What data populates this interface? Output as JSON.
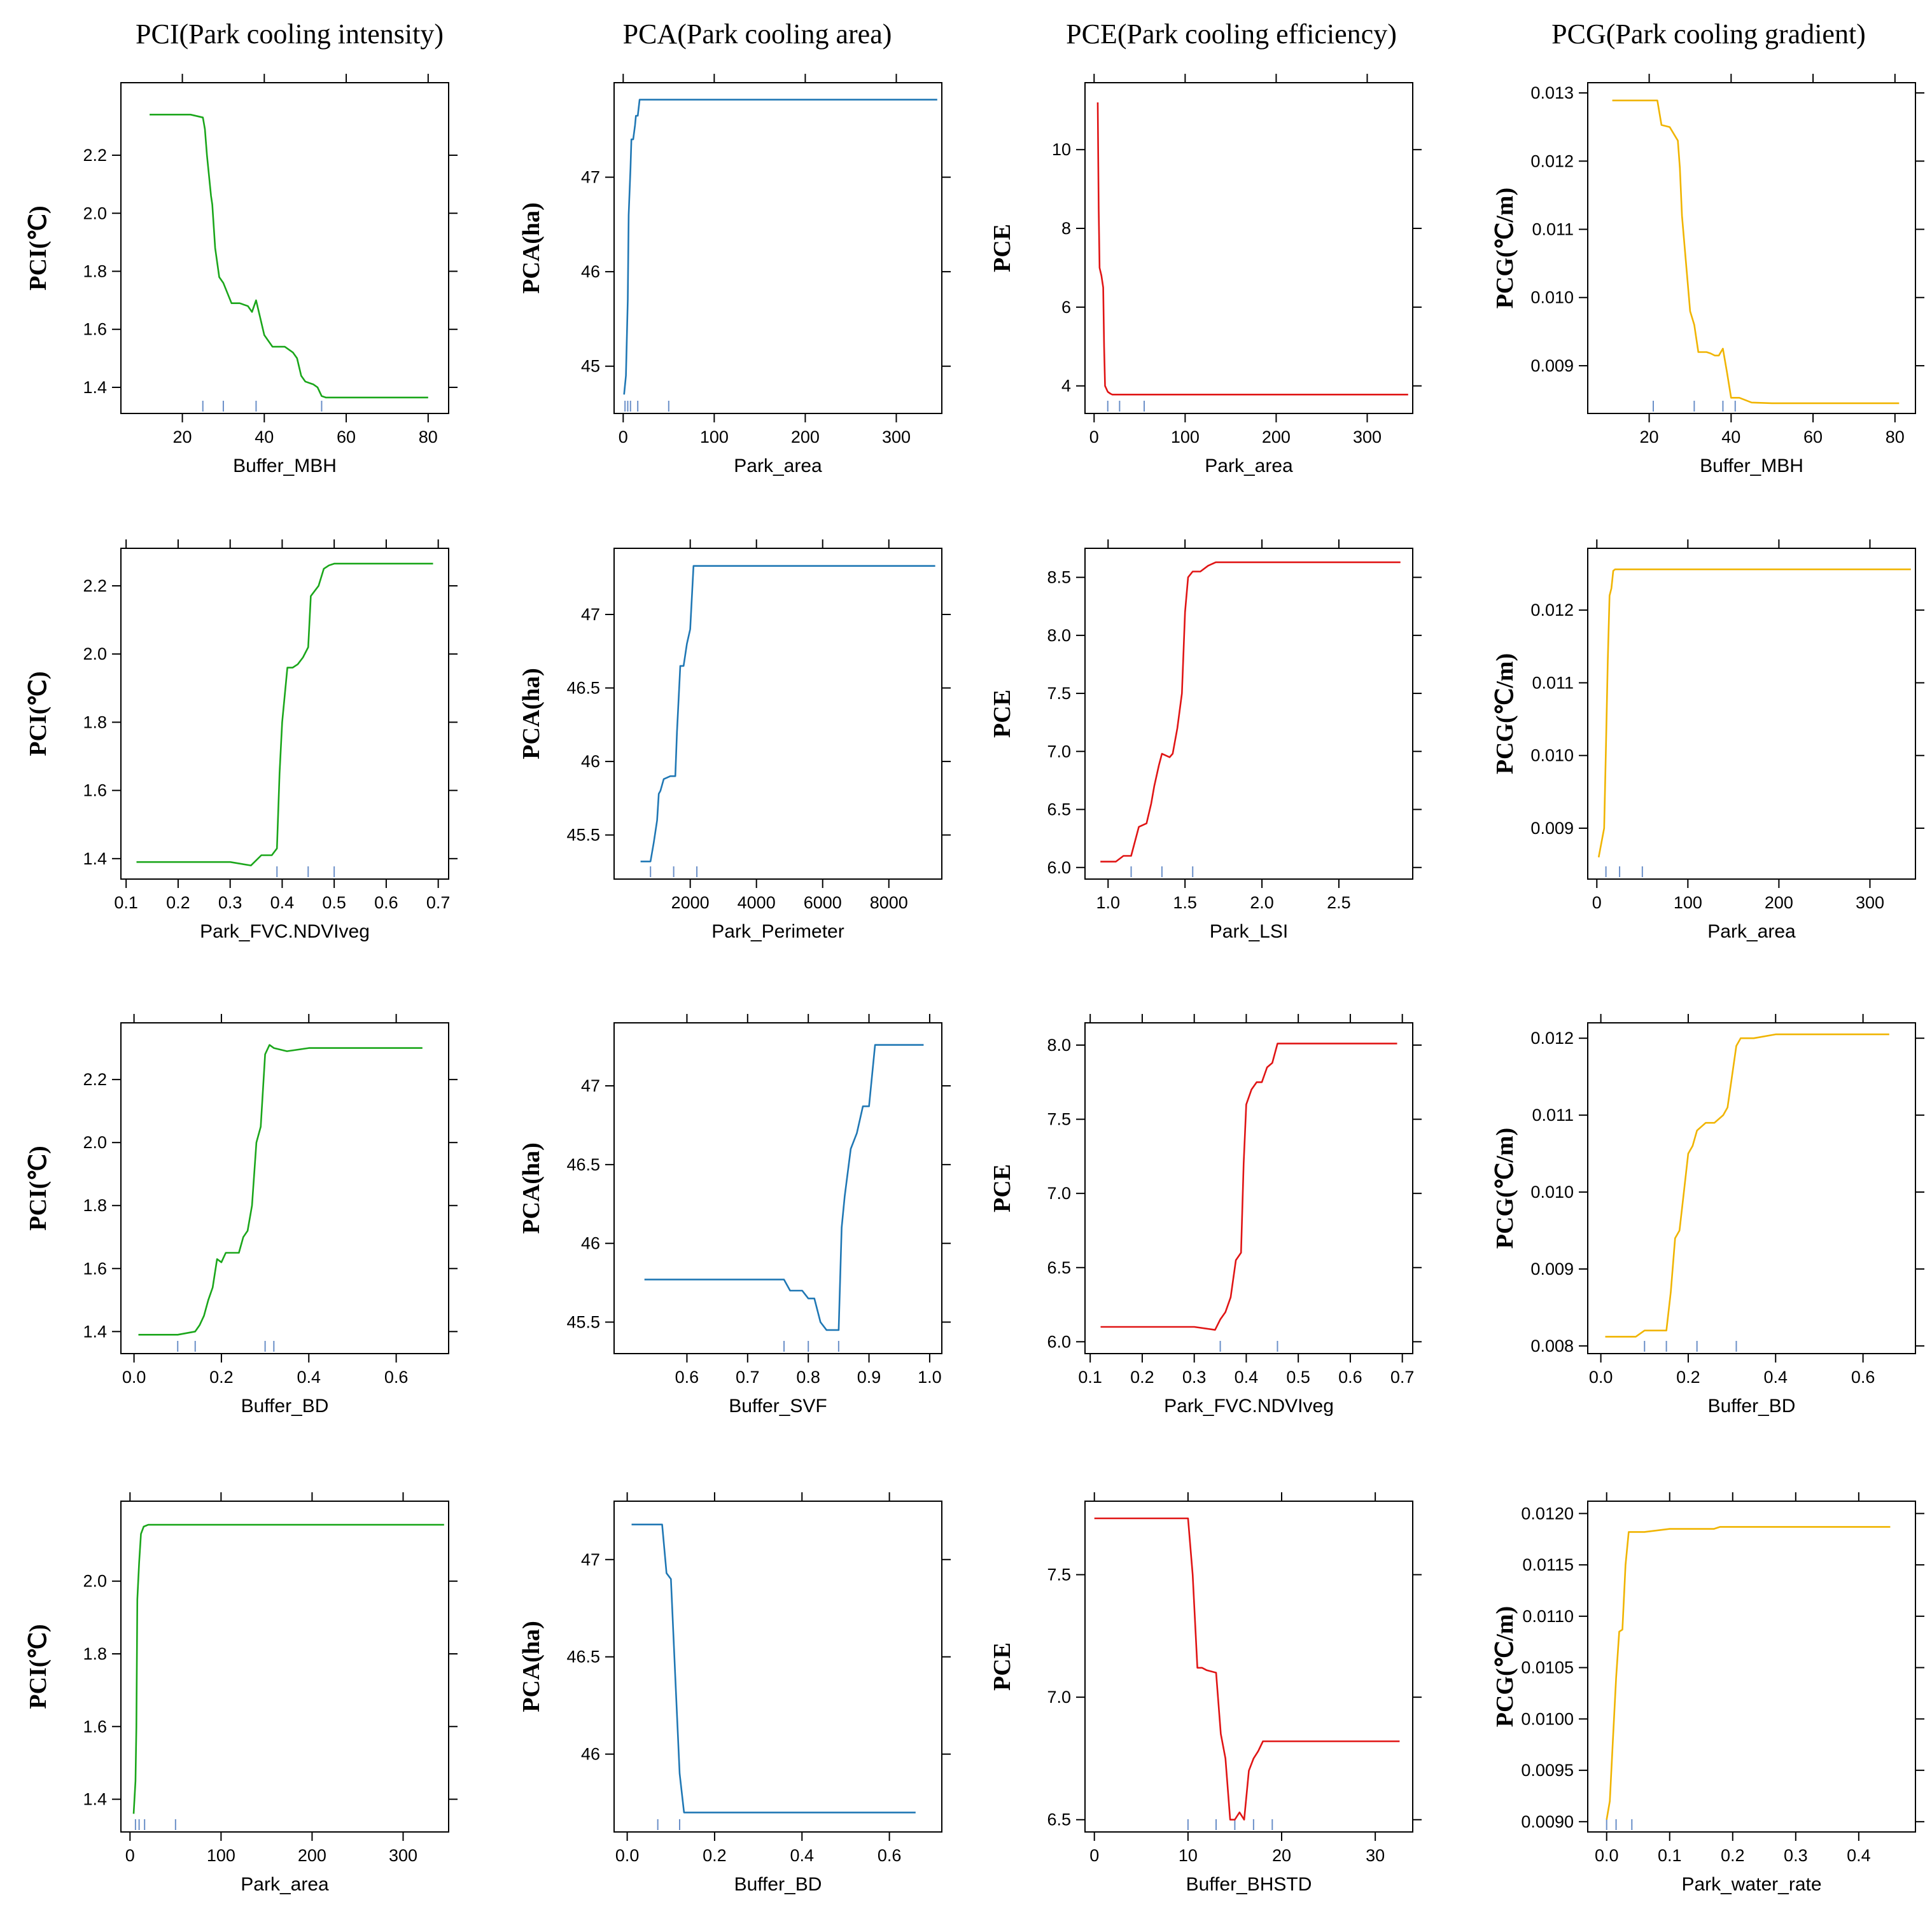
{
  "column_titles": [
    "PCI(Park cooling intensity)",
    "PCA(Park cooling area)",
    "PCE(Park cooling efficiency)",
    "PCG(Park cooling gradient)"
  ],
  "colors": {
    "PCI": "#1aa61a",
    "PCA": "#1f77b4",
    "PCE": "#e01414",
    "PCG": "#f0b400",
    "rug": "#6a8fc8",
    "axis": "#000000"
  },
  "chart_data": [
    {
      "type": "line",
      "metric": "PCI",
      "ylabel": "PCI(℃)",
      "xlabel": "Buffer_MBH",
      "xlim": [
        5,
        85
      ],
      "ylim": [
        1.31,
        2.45
      ],
      "xticks": [
        20,
        40,
        60,
        80
      ],
      "xtick_labels": [
        "20",
        "40",
        "60",
        "80"
      ],
      "yticks": [
        1.4,
        1.6,
        1.8,
        2.0,
        2.2
      ],
      "ytick_labels": [
        "1.4",
        "1.6",
        "1.8",
        "2.0",
        "2.2"
      ],
      "x": [
        12,
        22,
        25,
        25.5,
        26,
        27,
        27.3,
        28,
        29,
        30,
        32,
        34,
        36,
        37,
        38,
        39,
        40,
        42,
        45,
        46,
        47,
        48,
        49,
        50,
        52,
        53,
        54,
        55,
        60,
        70,
        80
      ],
      "y": [
        2.34,
        2.34,
        2.33,
        2.29,
        2.2,
        2.06,
        2.03,
        1.88,
        1.78,
        1.76,
        1.69,
        1.69,
        1.68,
        1.66,
        1.7,
        1.64,
        1.58,
        1.54,
        1.54,
        1.53,
        1.52,
        1.5,
        1.44,
        1.42,
        1.41,
        1.4,
        1.37,
        1.365,
        1.365,
        1.365,
        1.365
      ],
      "rug": [
        25,
        30,
        38,
        54
      ]
    },
    {
      "type": "line",
      "metric": "PCA",
      "ylabel": "PCA(ha)",
      "xlabel": "Park_area",
      "xlim": [
        -10,
        350
      ],
      "ylim": [
        44.5,
        48.0
      ],
      "xticks": [
        0,
        100,
        200,
        300
      ],
      "xtick_labels": [
        "0",
        "100",
        "200",
        "300"
      ],
      "yticks": [
        45,
        46,
        47
      ],
      "ytick_labels": [
        "45",
        "46",
        "47"
      ],
      "x": [
        1,
        3,
        5,
        6,
        8,
        9,
        11,
        13,
        14,
        16,
        18,
        20,
        345
      ],
      "y": [
        44.7,
        44.9,
        45.7,
        46.6,
        47.1,
        47.4,
        47.4,
        47.55,
        47.65,
        47.65,
        47.82,
        47.82,
        47.82
      ],
      "rug": [
        2,
        5,
        8,
        16,
        50
      ]
    },
    {
      "type": "line",
      "metric": "PCE",
      "ylabel": "PCE",
      "xlabel": "Park_area",
      "xlim": [
        -10,
        350
      ],
      "ylim": [
        3.3,
        11.7
      ],
      "xticks": [
        0,
        100,
        200,
        300
      ],
      "xtick_labels": [
        "0",
        "100",
        "200",
        "300"
      ],
      "yticks": [
        4,
        6,
        8,
        10
      ],
      "ytick_labels": [
        "4",
        "6",
        "8",
        "10"
      ],
      "x": [
        4,
        5,
        6,
        8,
        10,
        11,
        12,
        15,
        18,
        20,
        30,
        345
      ],
      "y": [
        11.2,
        8.5,
        7.0,
        6.8,
        6.5,
        5.0,
        4.0,
        3.85,
        3.8,
        3.78,
        3.78,
        3.78
      ],
      "rug": [
        15,
        28,
        55
      ]
    },
    {
      "type": "line",
      "metric": "PCG",
      "ylabel": "PCG(℃/m)",
      "xlabel": "Buffer_MBH",
      "xlim": [
        5,
        85
      ],
      "ylim": [
        0.0083,
        0.01315
      ],
      "xticks": [
        20,
        40,
        60,
        80
      ],
      "xtick_labels": [
        "20",
        "40",
        "60",
        "80"
      ],
      "yticks": [
        0.009,
        0.01,
        0.011,
        0.012,
        0.013
      ],
      "ytick_labels": [
        "0.009",
        "0.010",
        "0.011",
        "0.012",
        "0.013"
      ],
      "x": [
        11,
        22,
        23,
        25,
        26,
        27,
        27.5,
        28,
        29,
        30,
        31,
        32,
        34,
        35,
        36,
        37,
        38,
        39,
        40,
        42,
        45,
        50,
        60,
        70,
        81
      ],
      "y": [
        0.01289,
        0.01289,
        0.01253,
        0.0125,
        0.0124,
        0.0123,
        0.0119,
        0.0112,
        0.0105,
        0.0098,
        0.0096,
        0.0092,
        0.0092,
        0.00918,
        0.00915,
        0.00915,
        0.00925,
        0.0089,
        0.00853,
        0.00853,
        0.00846,
        0.00845,
        0.00845,
        0.00845,
        0.00845
      ],
      "rug": [
        21,
        31,
        38,
        41
      ]
    },
    {
      "type": "line",
      "metric": "PCI",
      "ylabel": "PCI(℃)",
      "xlabel": "Park_FVC.NDVIveg",
      "xlim": [
        0.09,
        0.72
      ],
      "ylim": [
        1.34,
        2.31
      ],
      "xticks": [
        0.1,
        0.2,
        0.3,
        0.4,
        0.5,
        0.6,
        0.7
      ],
      "xtick_labels": [
        "0.1",
        "0.2",
        "0.3",
        "0.4",
        "0.5",
        "0.6",
        "0.7"
      ],
      "yticks": [
        1.4,
        1.6,
        1.8,
        2.0,
        2.2
      ],
      "ytick_labels": [
        "1.4",
        "1.6",
        "1.8",
        "2.0",
        "2.2"
      ],
      "x": [
        0.12,
        0.2,
        0.3,
        0.34,
        0.36,
        0.38,
        0.39,
        0.395,
        0.4,
        0.41,
        0.42,
        0.43,
        0.44,
        0.45,
        0.455,
        0.46,
        0.47,
        0.48,
        0.49,
        0.5,
        0.55,
        0.6,
        0.69
      ],
      "y": [
        1.39,
        1.39,
        1.39,
        1.38,
        1.41,
        1.41,
        1.43,
        1.65,
        1.8,
        1.96,
        1.96,
        1.97,
        1.99,
        2.02,
        2.17,
        2.18,
        2.2,
        2.25,
        2.26,
        2.265,
        2.265,
        2.265,
        2.265
      ],
      "rug": [
        0.39,
        0.45,
        0.5
      ]
    },
    {
      "type": "line",
      "metric": "PCA",
      "ylabel": "PCA(ha)",
      "xlabel": "Park_Perimeter",
      "xlim": [
        -300,
        9600
      ],
      "ylim": [
        45.2,
        47.45
      ],
      "xticks": [
        2000,
        4000,
        6000,
        8000
      ],
      "xtick_labels": [
        "2000",
        "4000",
        "6000",
        "8000"
      ],
      "yticks": [
        45.5,
        46,
        46.5,
        47
      ],
      "ytick_labels": [
        "45.5",
        "46",
        "46.5",
        "47"
      ],
      "x": [
        500,
        800,
        900,
        1000,
        1050,
        1100,
        1200,
        1400,
        1550,
        1600,
        1700,
        1800,
        1900,
        2000,
        2100,
        2200,
        9400
      ],
      "y": [
        45.32,
        45.32,
        45.45,
        45.6,
        45.78,
        45.8,
        45.88,
        45.9,
        45.9,
        46.2,
        46.65,
        46.65,
        46.8,
        46.9,
        47.33,
        47.33,
        47.33
      ],
      "rug": [
        800,
        1500,
        2200
      ]
    },
    {
      "type": "line",
      "metric": "PCE",
      "ylabel": "PCE",
      "xlabel": "Park_LSI",
      "xlim": [
        0.85,
        2.98
      ],
      "ylim": [
        5.9,
        8.75
      ],
      "xticks": [
        1.0,
        1.5,
        2.0,
        2.5
      ],
      "xtick_labels": [
        "1.0",
        "1.5",
        "2.0",
        "2.5"
      ],
      "yticks": [
        6.0,
        6.5,
        7.0,
        7.5,
        8.0,
        8.5
      ],
      "ytick_labels": [
        "6.0",
        "6.5",
        "7.0",
        "7.5",
        "8.0",
        "8.5"
      ],
      "x": [
        0.95,
        1.05,
        1.1,
        1.15,
        1.2,
        1.25,
        1.28,
        1.3,
        1.33,
        1.35,
        1.4,
        1.42,
        1.45,
        1.48,
        1.5,
        1.52,
        1.55,
        1.6,
        1.65,
        1.7,
        2.0,
        2.5,
        2.9
      ],
      "y": [
        6.05,
        6.05,
        6.1,
        6.1,
        6.35,
        6.38,
        6.55,
        6.7,
        6.88,
        6.98,
        6.95,
        6.98,
        7.2,
        7.5,
        8.2,
        8.5,
        8.55,
        8.55,
        8.6,
        8.63,
        8.63,
        8.63,
        8.63
      ],
      "rug": [
        1.15,
        1.35,
        1.55
      ]
    },
    {
      "type": "line",
      "metric": "PCG",
      "ylabel": "PCG(℃/m)",
      "xlabel": "Park_area",
      "xlim": [
        -10,
        350
      ],
      "ylim": [
        0.0083,
        0.01285
      ],
      "xticks": [
        0,
        100,
        200,
        300
      ],
      "xtick_labels": [
        "0",
        "100",
        "200",
        "300"
      ],
      "yticks": [
        0.009,
        0.01,
        0.011,
        0.012
      ],
      "ytick_labels": [
        "0.009",
        "0.010",
        "0.011",
        "0.012"
      ],
      "x": [
        2,
        5,
        8,
        10,
        12,
        14,
        16,
        18,
        20,
        25,
        345
      ],
      "y": [
        0.0086,
        0.0088,
        0.009,
        0.0101,
        0.0113,
        0.0122,
        0.0123,
        0.01254,
        0.01256,
        0.01256,
        0.01256
      ],
      "rug": [
        10,
        25,
        50
      ]
    },
    {
      "type": "line",
      "metric": "PCI",
      "ylabel": "PCI(℃)",
      "xlabel": "Buffer_BD",
      "xlim": [
        -0.03,
        0.72
      ],
      "ylim": [
        1.33,
        2.38
      ],
      "xticks": [
        0,
        0.2,
        0.4,
        0.6
      ],
      "xtick_labels": [
        "0.0",
        "0.2",
        "0.4",
        "0.6"
      ],
      "yticks": [
        1.4,
        1.6,
        1.8,
        2.0,
        2.2
      ],
      "ytick_labels": [
        "1.4",
        "1.6",
        "1.8",
        "2.0",
        "2.2"
      ],
      "x": [
        0.01,
        0.1,
        0.14,
        0.15,
        0.16,
        0.17,
        0.18,
        0.19,
        0.2,
        0.21,
        0.22,
        0.23,
        0.24,
        0.25,
        0.26,
        0.27,
        0.28,
        0.29,
        0.3,
        0.31,
        0.32,
        0.35,
        0.4,
        0.5,
        0.66
      ],
      "y": [
        1.39,
        1.39,
        1.4,
        1.42,
        1.45,
        1.5,
        1.54,
        1.63,
        1.62,
        1.65,
        1.65,
        1.65,
        1.65,
        1.7,
        1.72,
        1.8,
        2.0,
        2.05,
        2.28,
        2.31,
        2.3,
        2.29,
        2.3,
        2.3,
        2.3
      ],
      "rug": [
        0.1,
        0.14,
        0.3,
        0.32
      ]
    },
    {
      "type": "line",
      "metric": "PCA",
      "ylabel": "PCA(ha)",
      "xlabel": "Buffer_SVF",
      "xlim": [
        0.48,
        1.02
      ],
      "ylim": [
        45.3,
        47.4
      ],
      "xticks": [
        0.6,
        0.7,
        0.8,
        0.9,
        1.0
      ],
      "xtick_labels": [
        "0.6",
        "0.7",
        "0.8",
        "0.9",
        "1.0"
      ],
      "yticks": [
        45.5,
        46,
        46.5,
        47
      ],
      "ytick_labels": [
        "45.5",
        "46",
        "46.5",
        "47"
      ],
      "x": [
        0.53,
        0.7,
        0.76,
        0.77,
        0.79,
        0.8,
        0.81,
        0.82,
        0.83,
        0.85,
        0.855,
        0.86,
        0.87,
        0.88,
        0.89,
        0.9,
        0.91,
        0.92,
        0.99
      ],
      "y": [
        45.77,
        45.77,
        45.77,
        45.7,
        45.7,
        45.65,
        45.65,
        45.5,
        45.45,
        45.45,
        46.1,
        46.3,
        46.6,
        46.7,
        46.87,
        46.87,
        47.26,
        47.26,
        47.26
      ],
      "rug": [
        0.76,
        0.8,
        0.85
      ]
    },
    {
      "type": "line",
      "metric": "PCE",
      "ylabel": "PCE",
      "xlabel": "Park_FVC.NDVIveg",
      "xlim": [
        0.09,
        0.72
      ],
      "ylim": [
        5.92,
        8.15
      ],
      "xticks": [
        0.1,
        0.2,
        0.3,
        0.4,
        0.5,
        0.6,
        0.7
      ],
      "xtick_labels": [
        "0.1",
        "0.2",
        "0.3",
        "0.4",
        "0.5",
        "0.6",
        "0.7"
      ],
      "yticks": [
        6.0,
        6.5,
        7.0,
        7.5,
        8.0
      ],
      "ytick_labels": [
        "6.0",
        "6.5",
        "7.0",
        "7.5",
        "8.0"
      ],
      "x": [
        0.12,
        0.2,
        0.3,
        0.34,
        0.35,
        0.36,
        0.37,
        0.38,
        0.39,
        0.395,
        0.4,
        0.41,
        0.42,
        0.43,
        0.44,
        0.45,
        0.46,
        0.47,
        0.5,
        0.69
      ],
      "y": [
        6.1,
        6.1,
        6.1,
        6.08,
        6.15,
        6.2,
        6.3,
        6.55,
        6.6,
        7.2,
        7.6,
        7.7,
        7.75,
        7.75,
        7.85,
        7.88,
        8.01,
        8.01,
        8.01,
        8.01
      ],
      "rug": [
        0.35,
        0.46
      ]
    },
    {
      "type": "line",
      "metric": "PCG",
      "ylabel": "PCG(℃/m)",
      "xlabel": "Buffer_BD",
      "xlim": [
        -0.03,
        0.72
      ],
      "ylim": [
        0.0079,
        0.0122
      ],
      "xticks": [
        0,
        0.2,
        0.4,
        0.6
      ],
      "xtick_labels": [
        "0.0",
        "0.2",
        "0.4",
        "0.6"
      ],
      "yticks": [
        0.008,
        0.009,
        0.01,
        0.011,
        0.012
      ],
      "ytick_labels": [
        "0.008",
        "0.009",
        "0.010",
        "0.011",
        "0.012"
      ],
      "x": [
        0.01,
        0.08,
        0.1,
        0.15,
        0.16,
        0.17,
        0.18,
        0.19,
        0.2,
        0.21,
        0.22,
        0.24,
        0.26,
        0.28,
        0.29,
        0.3,
        0.31,
        0.32,
        0.35,
        0.4,
        0.66
      ],
      "y": [
        0.00812,
        0.00812,
        0.0082,
        0.0082,
        0.0087,
        0.0094,
        0.0095,
        0.01,
        0.0105,
        0.0106,
        0.0108,
        0.0109,
        0.0109,
        0.011,
        0.0111,
        0.0115,
        0.0119,
        0.012,
        0.012,
        0.01205,
        0.01205
      ],
      "rug": [
        0.1,
        0.15,
        0.22,
        0.31
      ]
    },
    {
      "type": "line",
      "metric": "PCI",
      "ylabel": "PCI(℃)",
      "xlabel": "Park_area",
      "xlim": [
        -10,
        350
      ],
      "ylim": [
        1.31,
        2.22
      ],
      "xticks": [
        0,
        100,
        200,
        300
      ],
      "xtick_labels": [
        "0",
        "100",
        "200",
        "300"
      ],
      "yticks": [
        1.4,
        1.6,
        1.8,
        2.0
      ],
      "ytick_labels": [
        "1.4",
        "1.6",
        "1.8",
        "2.0"
      ],
      "x": [
        4,
        6,
        7,
        8,
        10,
        12,
        15,
        20,
        345
      ],
      "y": [
        1.36,
        1.45,
        1.6,
        1.95,
        2.05,
        2.13,
        2.15,
        2.155,
        2.155
      ],
      "rug": [
        6,
        10,
        16,
        50
      ]
    },
    {
      "type": "line",
      "metric": "PCA",
      "ylabel": "PCA(ha)",
      "xlabel": "Buffer_BD",
      "xlim": [
        -0.03,
        0.72
      ],
      "ylim": [
        45.6,
        47.3
      ],
      "xticks": [
        0,
        0.2,
        0.4,
        0.6
      ],
      "xtick_labels": [
        "0.0",
        "0.2",
        "0.4",
        "0.6"
      ],
      "yticks": [
        46,
        46.5,
        47
      ],
      "ytick_labels": [
        "46",
        "46.5",
        "47"
      ],
      "x": [
        0.01,
        0.08,
        0.09,
        0.1,
        0.11,
        0.12,
        0.13,
        0.2,
        0.4,
        0.66
      ],
      "y": [
        47.18,
        47.18,
        46.93,
        46.9,
        46.4,
        45.9,
        45.7,
        45.7,
        45.7,
        45.7
      ],
      "rug": [
        0.07,
        0.12
      ]
    },
    {
      "type": "line",
      "metric": "PCE",
      "ylabel": "PCE",
      "xlabel": "Buffer_BHSTD",
      "xlim": [
        -1,
        34
      ],
      "ylim": [
        6.45,
        7.8
      ],
      "xticks": [
        0,
        10,
        20,
        30
      ],
      "xtick_labels": [
        "0",
        "10",
        "20",
        "30"
      ],
      "yticks": [
        6.5,
        7.0,
        7.5
      ],
      "ytick_labels": [
        "6.5",
        "7.0",
        "7.5"
      ],
      "x": [
        0,
        10,
        10.5,
        11,
        11.5,
        12,
        13,
        13.5,
        14,
        14.5,
        15,
        15.5,
        16,
        16.5,
        17,
        17.5,
        18,
        19,
        25,
        32.6
      ],
      "y": [
        7.73,
        7.73,
        7.5,
        7.12,
        7.12,
        7.11,
        7.1,
        6.85,
        6.75,
        6.5,
        6.5,
        6.53,
        6.5,
        6.7,
        6.75,
        6.78,
        6.82,
        6.82,
        6.82,
        6.82
      ],
      "rug": [
        10,
        13,
        15,
        17,
        19
      ]
    },
    {
      "type": "line",
      "metric": "PCG",
      "ylabel": "PCG(℃/m)",
      "xlabel": "Park_water_rate",
      "xlim": [
        -0.03,
        0.49
      ],
      "ylim": [
        0.0089,
        0.01212
      ],
      "xticks": [
        0.0,
        0.1,
        0.2,
        0.3,
        0.4
      ],
      "xtick_labels": [
        "0.0",
        "0.1",
        "0.2",
        "0.3",
        "0.4"
      ],
      "yticks": [
        0.009,
        0.0095,
        0.01,
        0.0105,
        0.011,
        0.0115,
        0.012
      ],
      "ytick_labels": [
        "0.0090",
        "0.0095",
        "0.0100",
        "0.0105",
        "0.0110",
        "0.0115",
        "0.0120"
      ],
      "x": [
        0.0,
        0.005,
        0.01,
        0.015,
        0.02,
        0.025,
        0.03,
        0.035,
        0.04,
        0.06,
        0.1,
        0.17,
        0.18,
        0.3,
        0.45
      ],
      "y": [
        0.00902,
        0.0092,
        0.0098,
        0.0104,
        0.01085,
        0.01087,
        0.0115,
        0.01182,
        0.01182,
        0.01182,
        0.01185,
        0.01185,
        0.01187,
        0.01187,
        0.01187
      ],
      "rug": [
        0.0,
        0.015,
        0.04
      ]
    }
  ]
}
